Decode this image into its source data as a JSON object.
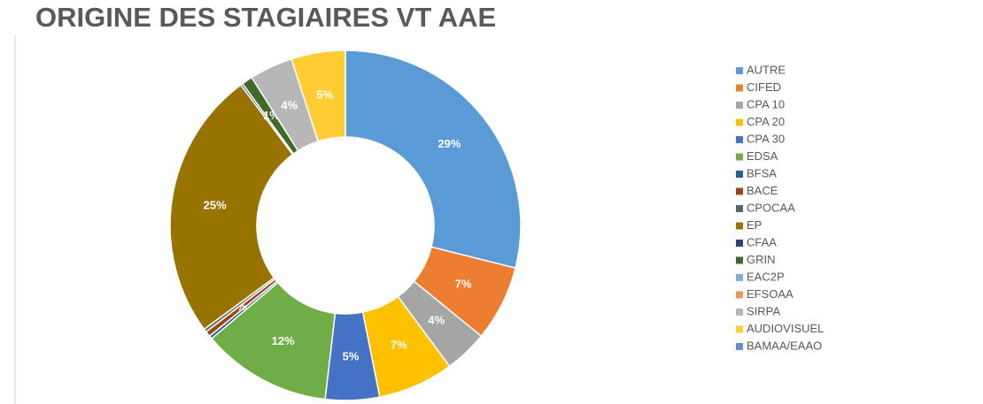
{
  "chart_data": {
    "type": "donut",
    "title": "ORIGINE DES STAGIAIRES VT AAE",
    "categories": [
      "AUTRE",
      "CIFED",
      "CPA 10",
      "CPA 20",
      "CPA 30",
      "EDSA",
      "BFSA",
      "BACE",
      "CPOCAA",
      "EP",
      "CFAA",
      "GRIN",
      "EAC2P",
      "EFSOAA",
      "SIRPA",
      "AUDIOVISUEL",
      "BAMAA/EAAO"
    ],
    "values": [
      29,
      7,
      4,
      7,
      5,
      12,
      0.3,
      0.5,
      0.3,
      25,
      0.2,
      1,
      0,
      0,
      4,
      5,
      0
    ],
    "value_labels": [
      "29%",
      "7%",
      "4%",
      "7%",
      "5%",
      "12%",
      null,
      "%",
      null,
      "25%",
      null,
      "1%",
      null,
      null,
      "4%",
      "5%",
      null
    ],
    "colors": [
      "#5b9bd5",
      "#ed7d31",
      "#a5a5a5",
      "#ffc000",
      "#4472c4",
      "#70ad47",
      "#255e91",
      "#9e480e",
      "#636363",
      "#997300",
      "#264478",
      "#43682b",
      "#7cafdd",
      "#f1975a",
      "#b7b7b7",
      "#ffcd33",
      "#698ed0"
    ],
    "legend": "right"
  }
}
